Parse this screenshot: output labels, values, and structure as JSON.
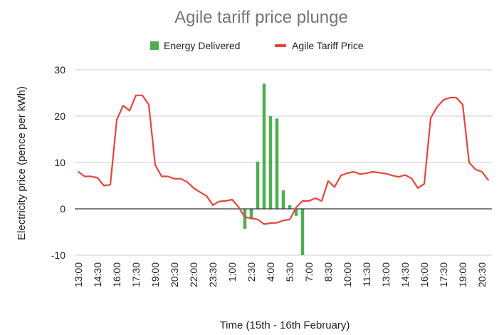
{
  "chart_data": {
    "type": "bar+line",
    "title": "Agile tariff price plunge",
    "xlabel": "Time (15th - 16th February)",
    "ylabel": "Electricity price (pence per kWh)",
    "ylim": [
      -10,
      30
    ],
    "yticks": [
      30,
      20,
      10,
      0,
      -10
    ],
    "grid": true,
    "legend_position": "top",
    "x_tick_labels": [
      "13:00",
      "14:30",
      "16:00",
      "17:30",
      "19:00",
      "20:30",
      "22:00",
      "23:30",
      "1:00",
      "2:30",
      "4:00",
      "5:30",
      "7:00",
      "8:30",
      "10:00",
      "11:30",
      "13:00",
      "14:30",
      "16:00",
      "17:30",
      "19:00",
      "20:30"
    ],
    "legend": [
      {
        "name": "Energy Delivered",
        "color": "#4caf50",
        "kind": "bar"
      },
      {
        "name": "Agile Tariff Price",
        "color": "#e8453c",
        "kind": "line"
      }
    ],
    "bar_series": {
      "name": "Energy Delivered",
      "color": "#4caf50",
      "values": [
        -4.3,
        -2.3,
        10.2,
        27.0,
        20.0,
        19.5,
        4.0,
        0.8,
        -1.5,
        -10.0
      ]
    },
    "line_series": {
      "name": "Agile Tariff Price",
      "color": "#e8453c",
      "values": [
        8,
        7,
        7,
        6.7,
        5,
        5.2,
        19.2,
        22.3,
        21.2,
        24.5,
        24.5,
        22.5,
        9.5,
        7,
        7,
        6.5,
        6.5,
        5.8,
        4.5,
        3.6,
        2.8,
        0.8,
        1.6,
        1.7,
        2,
        0.4,
        -1.8,
        -2,
        -2.3,
        -3.3,
        -3.1,
        -3,
        -2.5,
        -2.3,
        0.3,
        1.7,
        1.7,
        2.3,
        1.7,
        6,
        4.7,
        7.2,
        7.7,
        8,
        7.5,
        7.7,
        8,
        7.8,
        7.6,
        7.2,
        6.9,
        7.3,
        6.6,
        4.5,
        5.4,
        19.6,
        22,
        23.5,
        24,
        24,
        22.5,
        10,
        8.5,
        8,
        6.2
      ]
    }
  }
}
